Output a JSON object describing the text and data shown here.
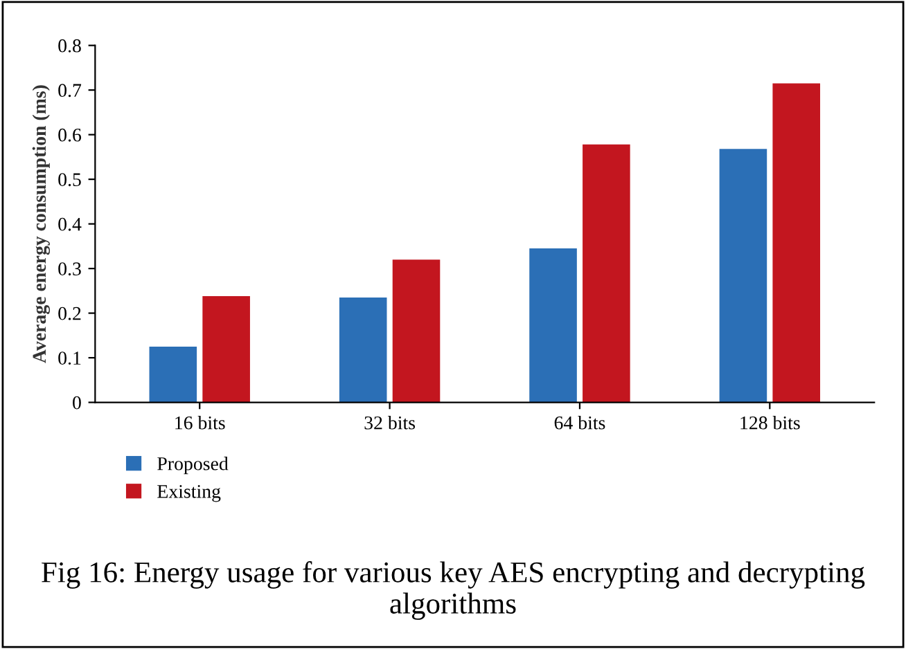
{
  "chart_data": {
    "type": "bar",
    "ylabel": "Average energy consumption (ms)",
    "categories": [
      "16 bits",
      "32 bits",
      "64 bits",
      "128 bits"
    ],
    "series": [
      {
        "name": "Proposed",
        "color": "#2b6fb6",
        "values": [
          0.125,
          0.235,
          0.345,
          0.568
        ]
      },
      {
        "name": "Existing",
        "color": "#c3161f",
        "values": [
          0.238,
          0.32,
          0.578,
          0.715
        ]
      }
    ],
    "ylim": [
      0,
      0.8
    ],
    "yticks": [
      0,
      0.1,
      0.2,
      0.3,
      0.4,
      0.5,
      0.6,
      0.7,
      0.8
    ],
    "grid": false,
    "legend": "bottom left",
    "annotations": [
      "Fig 16: Energy usage for various key AES encrypting and decrypting algorithms"
    ]
  }
}
